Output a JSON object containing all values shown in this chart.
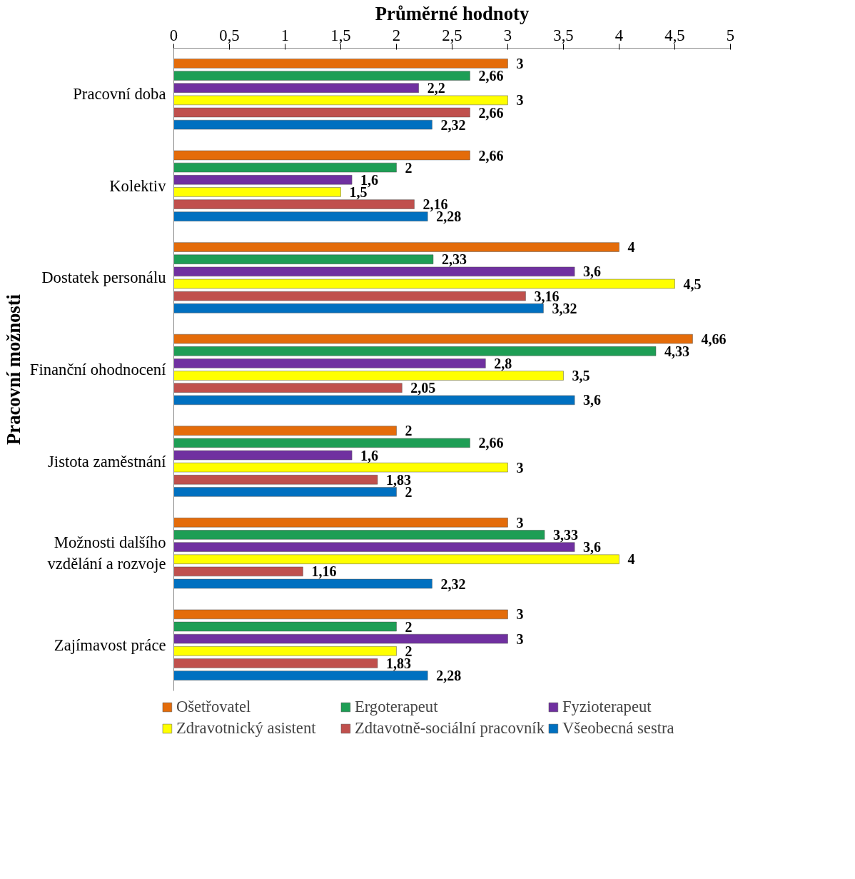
{
  "chart_data": {
    "type": "bar",
    "orientation": "horizontal",
    "xlabel": "Průměrné hodnoty",
    "ylabel": "Pracovní možnosti",
    "categories": [
      "Pracovní doba",
      "Kolektiv",
      "Dostatek personálu",
      "Finanční ohodnocení",
      "Jistota zaměstnání",
      "Možnosti dalšího vzdělání a rozvoje",
      "Zajímavost práce"
    ],
    "series": [
      {
        "name": "Ošetřovatel",
        "color": "#e46c0a",
        "values": [
          3,
          2.66,
          4,
          4.66,
          2,
          3,
          3
        ],
        "value_labels": [
          "3",
          "2,66",
          "4",
          "4,66",
          "2",
          "3",
          "3"
        ]
      },
      {
        "name": "Ergoterapeut",
        "color": "#1e9e55",
        "values": [
          2.66,
          2,
          2.33,
          4.33,
          2.66,
          3.33,
          2
        ],
        "value_labels": [
          "2,66",
          "2",
          "2,33",
          "4,33",
          "2,66",
          "3,33",
          "2"
        ]
      },
      {
        "name": "Fyzioterapeut",
        "color": "#7030a0",
        "values": [
          2.2,
          1.6,
          3.6,
          2.8,
          1.6,
          3.6,
          3
        ],
        "value_labels": [
          "2,2",
          "1,6",
          "3,6",
          "2,8",
          "1,6",
          "3,6",
          "3"
        ]
      },
      {
        "name": "Zdravotnický asistent",
        "color": "#ffff00",
        "values": [
          3,
          1.5,
          4.5,
          3.5,
          3,
          4,
          2
        ],
        "value_labels": [
          "3",
          "1,5",
          "4,5",
          "3,5",
          "3",
          "4",
          "2"
        ]
      },
      {
        "name": "Zdtavotně-sociální pracovník",
        "color": "#c0504d",
        "values": [
          2.66,
          2.16,
          3.16,
          2.05,
          1.83,
          1.16,
          1.83
        ],
        "value_labels": [
          "2,66",
          "2,16",
          "3,16",
          "2,05",
          "1,83",
          "1,16",
          "1,83"
        ]
      },
      {
        "name": "Všeobecná sestra",
        "color": "#0070c0",
        "values": [
          2.32,
          2.28,
          3.32,
          3.6,
          2,
          2.32,
          2.28
        ],
        "value_labels": [
          "2,32",
          "2,28",
          "3,32",
          "3,6",
          "2",
          "2,32",
          "2,28"
        ]
      }
    ],
    "xlim": [
      0,
      5
    ],
    "xticks": [
      0,
      {
        "value": 0.5,
        "label": "0,5"
      },
      1,
      {
        "value": 1.5,
        "label": "1,5"
      },
      2,
      {
        "value": 2.5,
        "label": "2,5"
      },
      3,
      {
        "value": 3.5,
        "label": "3,5"
      },
      4,
      {
        "value": 4.5,
        "label": "4,5"
      },
      5
    ],
    "grid": false,
    "legend": "bottom"
  }
}
